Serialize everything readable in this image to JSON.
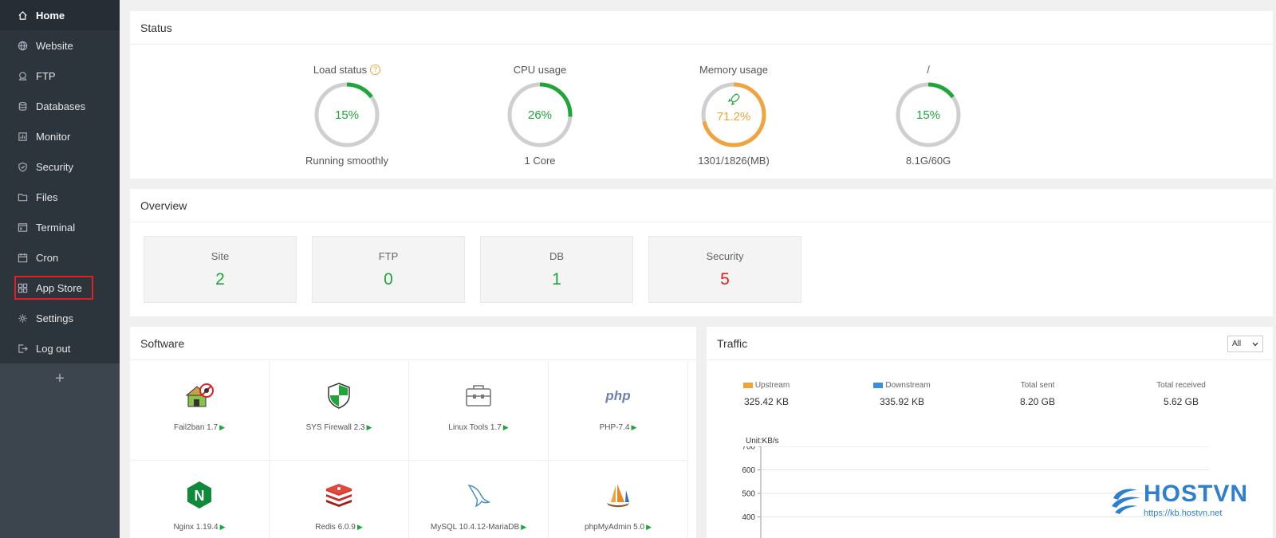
{
  "sidebar": {
    "items": [
      {
        "label": "Home",
        "icon": "home-icon"
      },
      {
        "label": "Website",
        "icon": "globe-icon"
      },
      {
        "label": "FTP",
        "icon": "ftp-icon"
      },
      {
        "label": "Databases",
        "icon": "database-icon"
      },
      {
        "label": "Monitor",
        "icon": "monitor-icon"
      },
      {
        "label": "Security",
        "icon": "shield-icon"
      },
      {
        "label": "Files",
        "icon": "folder-icon"
      },
      {
        "label": "Terminal",
        "icon": "terminal-icon"
      },
      {
        "label": "Cron",
        "icon": "calendar-icon"
      },
      {
        "label": "App Store",
        "icon": "grid-icon"
      },
      {
        "label": "Settings",
        "icon": "gear-icon"
      },
      {
        "label": "Log out",
        "icon": "logout-icon"
      }
    ],
    "add_label": "+"
  },
  "status": {
    "title": "Status",
    "gauges": [
      {
        "label": "Load status",
        "value": "15%",
        "percent": 15,
        "sub": "Running smoothly",
        "color": "#20a53a"
      },
      {
        "label": "CPU usage",
        "value": "26%",
        "percent": 26,
        "sub": "1 Core",
        "color": "#20a53a"
      },
      {
        "label": "Memory usage",
        "value": "71.2%",
        "percent": 71.2,
        "sub": "1301/1826(MB)",
        "color": "#f0a43c"
      },
      {
        "label": "/",
        "value": "15%",
        "percent": 15,
        "sub": "8.1G/60G",
        "color": "#20a53a"
      }
    ]
  },
  "overview": {
    "title": "Overview",
    "items": [
      {
        "label": "Site",
        "value": "2",
        "color": "#20a53a"
      },
      {
        "label": "FTP",
        "value": "0",
        "color": "#20a53a"
      },
      {
        "label": "DB",
        "value": "1",
        "color": "#20a53a"
      },
      {
        "label": "Security",
        "value": "5",
        "color": "#e02020"
      }
    ]
  },
  "software": {
    "title": "Software",
    "items": [
      {
        "name": "Fail2ban 1.7",
        "icon": "fail2ban-icon"
      },
      {
        "name": "SYS Firewall 2.3",
        "icon": "firewall-shield-icon"
      },
      {
        "name": "Linux Tools 1.7",
        "icon": "toolbox-icon"
      },
      {
        "name": "PHP-7.4",
        "icon": "php-icon",
        "icon_text": "php"
      },
      {
        "name": "Nginx 1.19.4",
        "icon": "nginx-icon",
        "icon_text": "N"
      },
      {
        "name": "Redis 6.0.9",
        "icon": "redis-icon"
      },
      {
        "name": "MySQL 10.4.12-MariaDB",
        "icon": "mysql-dolphin-icon"
      },
      {
        "name": "phpMyAdmin 5.0",
        "icon": "phpmyadmin-icon"
      }
    ]
  },
  "traffic": {
    "title": "Traffic",
    "filter": "All",
    "stats": [
      {
        "label": "Upstream",
        "value": "325.42 KB",
        "swatch": "#f0a43c"
      },
      {
        "label": "Downstream",
        "value": "335.92 KB",
        "swatch": "#3a8fd8"
      },
      {
        "label": "Total sent",
        "value": "8.20 GB"
      },
      {
        "label": "Total received",
        "value": "5.62 GB"
      }
    ],
    "chart_data": {
      "type": "line",
      "ylabel": "Unit:KB/s",
      "yticks": [
        "700",
        "600",
        "500",
        "400"
      ]
    }
  },
  "watermark": {
    "brand": "HOSTVN",
    "url": "https://kb.hostvn.net"
  }
}
